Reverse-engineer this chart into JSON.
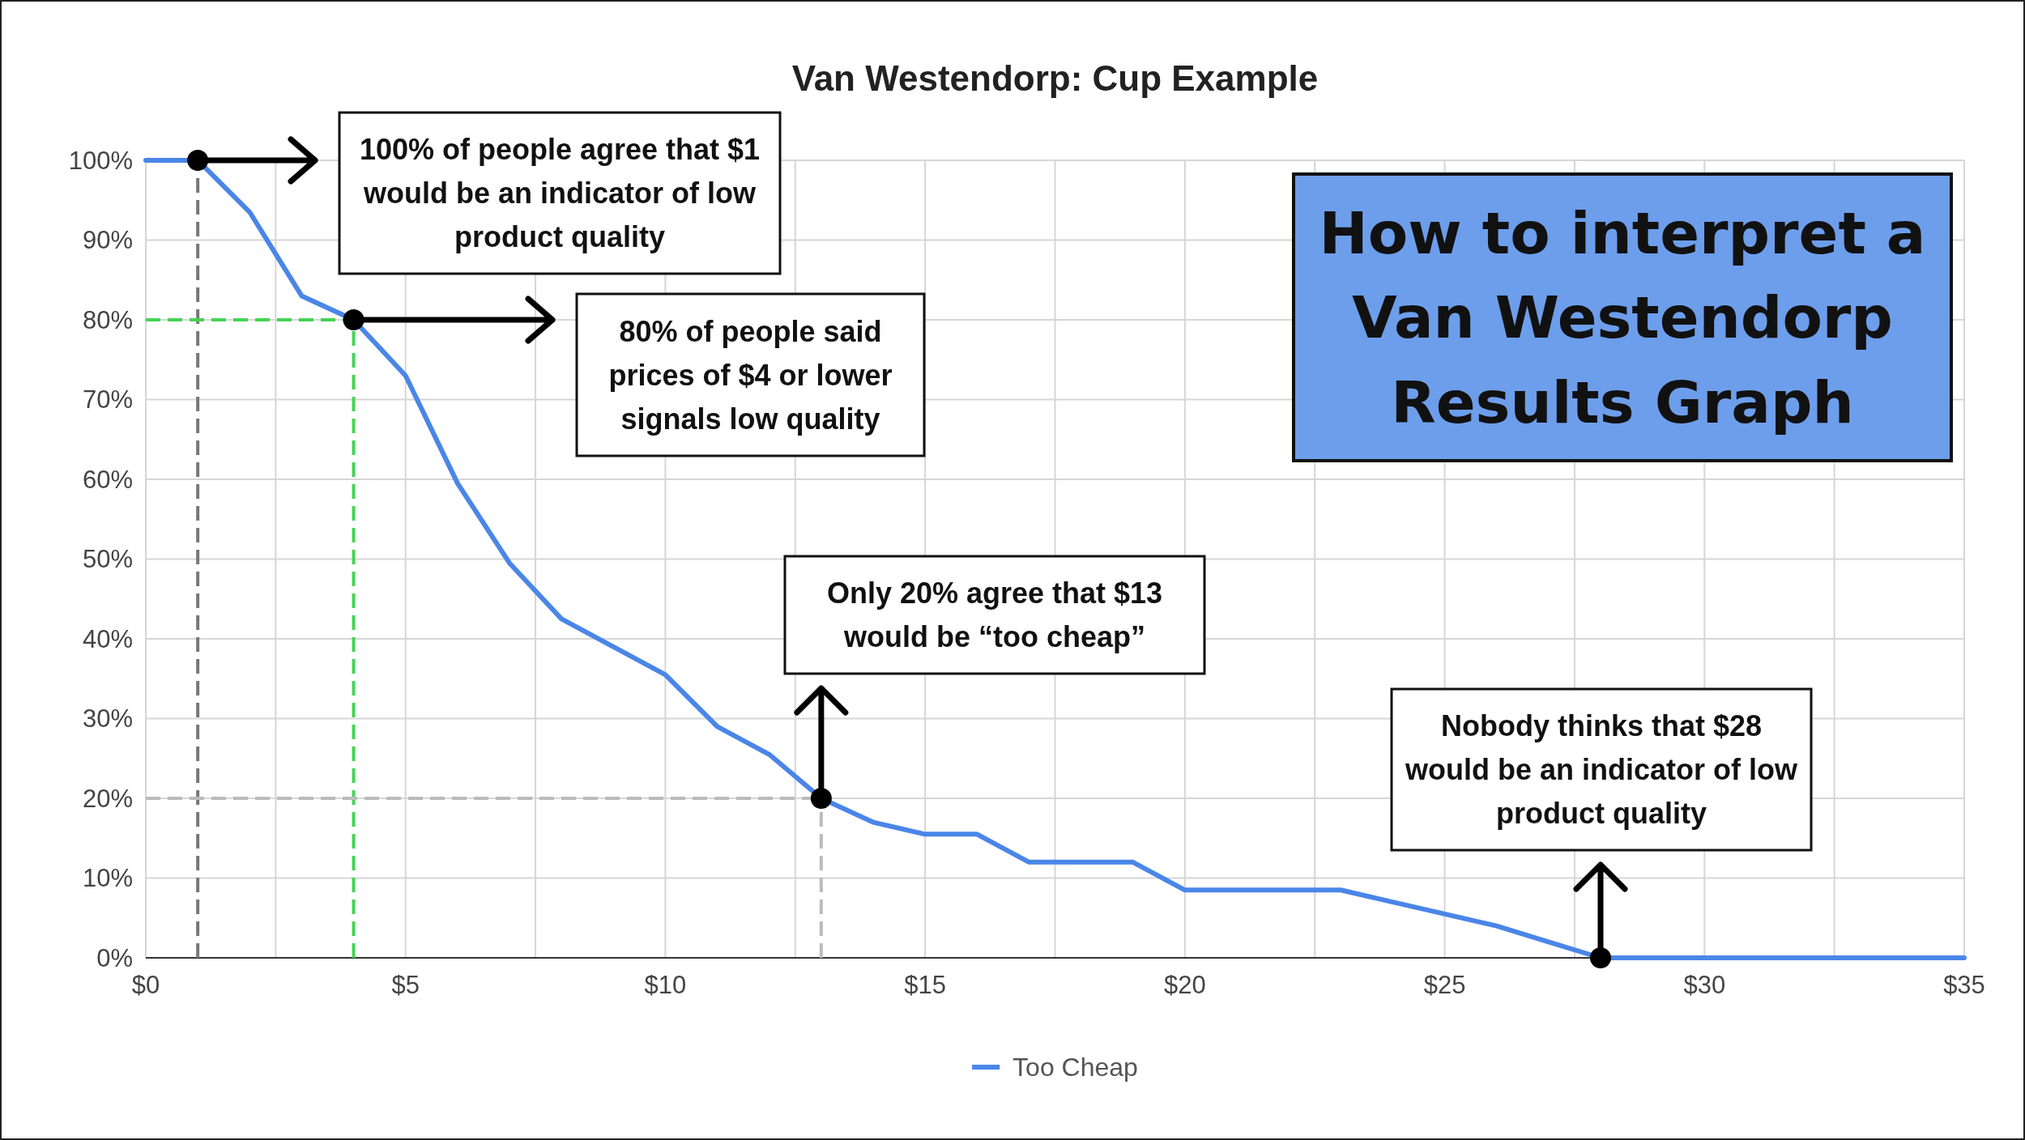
{
  "chart_data": {
    "type": "line",
    "title": "Van Westendorp: Cup Example",
    "x": [
      0,
      1,
      2,
      3,
      4,
      5,
      6,
      7,
      8,
      9,
      10,
      11,
      12,
      13,
      14,
      15,
      16,
      17,
      18,
      19,
      20,
      21,
      22,
      23,
      24,
      25,
      26,
      27,
      28,
      29,
      30,
      31,
      32,
      33,
      34,
      35
    ],
    "series": [
      {
        "name": "Too Cheap",
        "color": "#4a86e8",
        "values": [
          100,
          100,
          93.5,
          83,
          80,
          73,
          59.5,
          49.5,
          42.5,
          39,
          35.5,
          29,
          25.5,
          20,
          17,
          15.5,
          15.5,
          12,
          12,
          12,
          8.5,
          8.5,
          8.5,
          8.5,
          7,
          5.5,
          4,
          2,
          0,
          0,
          0,
          0,
          0,
          0,
          0,
          0
        ]
      }
    ],
    "xlim": [
      0,
      35
    ],
    "xticks": [
      {
        "value": 0,
        "label": "$0"
      },
      {
        "value": 2.5,
        "label": null
      },
      {
        "value": 5,
        "label": "$5"
      },
      {
        "value": 7.5,
        "label": null
      },
      {
        "value": 10,
        "label": "$10"
      },
      {
        "value": 12.5,
        "label": null
      },
      {
        "value": 15,
        "label": "$15"
      },
      {
        "value": 17.5,
        "label": null
      },
      {
        "value": 20,
        "label": "$20"
      },
      {
        "value": 22.5,
        "label": null
      },
      {
        "value": 25,
        "label": "$25"
      },
      {
        "value": 27.5,
        "label": null
      },
      {
        "value": 30,
        "label": "$30"
      },
      {
        "value": 32.5,
        "label": null
      },
      {
        "value": 35,
        "label": "$35"
      }
    ],
    "ylim": [
      0,
      100
    ],
    "yticks": [
      {
        "value": 0,
        "label": "0%"
      },
      {
        "value": 10,
        "label": "10%"
      },
      {
        "value": 20,
        "label": "20%"
      },
      {
        "value": 30,
        "label": "30%"
      },
      {
        "value": 40,
        "label": "40%"
      },
      {
        "value": 50,
        "label": "50%"
      },
      {
        "value": 60,
        "label": "60%"
      },
      {
        "value": 70,
        "label": "70%"
      },
      {
        "value": 80,
        "label": "80%"
      },
      {
        "value": 90,
        "label": "90%"
      },
      {
        "value": 100,
        "label": "100%"
      }
    ],
    "grid": true,
    "legend": "bottom",
    "marker": "none",
    "line_style": "solid",
    "ref_lines": [
      {
        "axis": "x",
        "value": 1,
        "color": "#777777",
        "line_style": "dashed"
      },
      {
        "axis": "x",
        "value": 4,
        "color": "#44d455",
        "line_style": "dashed"
      },
      {
        "axis": "y",
        "value": 80,
        "color": "#44d455",
        "line_style": "dashed"
      },
      {
        "axis": "y",
        "value": 20,
        "color": "#bbbbbb",
        "line_style": "dashed"
      },
      {
        "axis": "x",
        "value": 13,
        "color": "#bbbbbb",
        "line_style": "dashed"
      }
    ],
    "annotations": [
      "How to interpret a Van Westendorp Results Graph",
      "100% of people agree that $1 would be an indicator of low product quality",
      "80% of people said prices of $4 or lower signals low quality",
      {
        "text": "Only 20% agree that $13 would be “too cheap”",
        "x": 13,
        "y": 20
      },
      {
        "text": "Nobody thinks that $28 would be an indicator of low product quality",
        "x": 28,
        "y": 0
      }
    ]
  }
}
